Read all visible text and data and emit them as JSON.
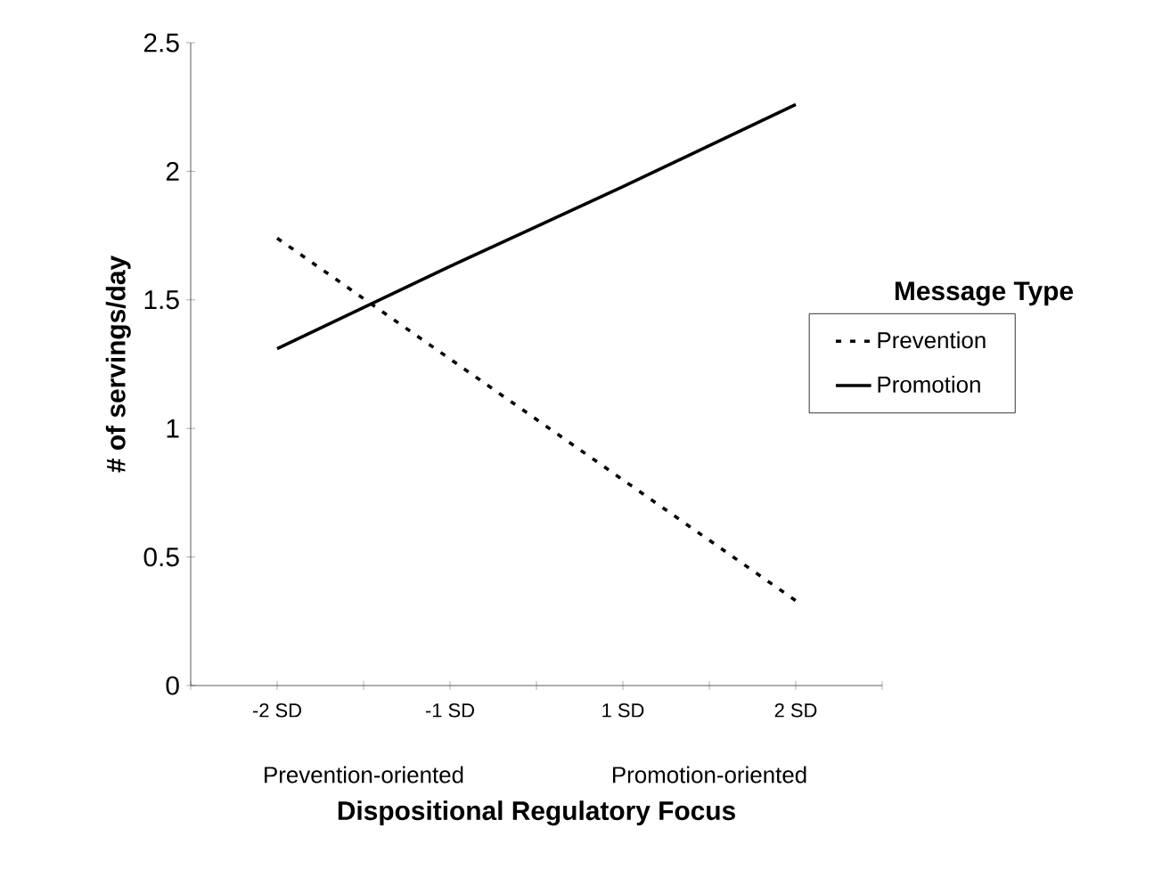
{
  "chart_data": {
    "type": "line",
    "xlabel": "Dispositional Regulatory Focus",
    "ylabel": "# of servings/day",
    "legend_title": "Message Type",
    "categories": [
      "-2 SD",
      "-1 SD",
      "1 SD",
      "2 SD"
    ],
    "series": [
      {
        "name": "Prevention",
        "color": "#000000",
        "line_style": "dotted",
        "values": [
          1.74,
          1.27,
          0.8,
          0.33
        ]
      },
      {
        "name": "Promotion",
        "color": "#000000",
        "line_style": "solid",
        "values": [
          1.31,
          1.63,
          1.94,
          2.26
        ]
      }
    ],
    "ylim": [
      0,
      2.5
    ],
    "yticks": [
      0,
      0.5,
      1,
      1.5,
      2,
      2.5
    ],
    "grid": false,
    "legend": "right",
    "annotations": [
      "Prevention-oriented",
      "Promotion-oriented"
    ]
  }
}
